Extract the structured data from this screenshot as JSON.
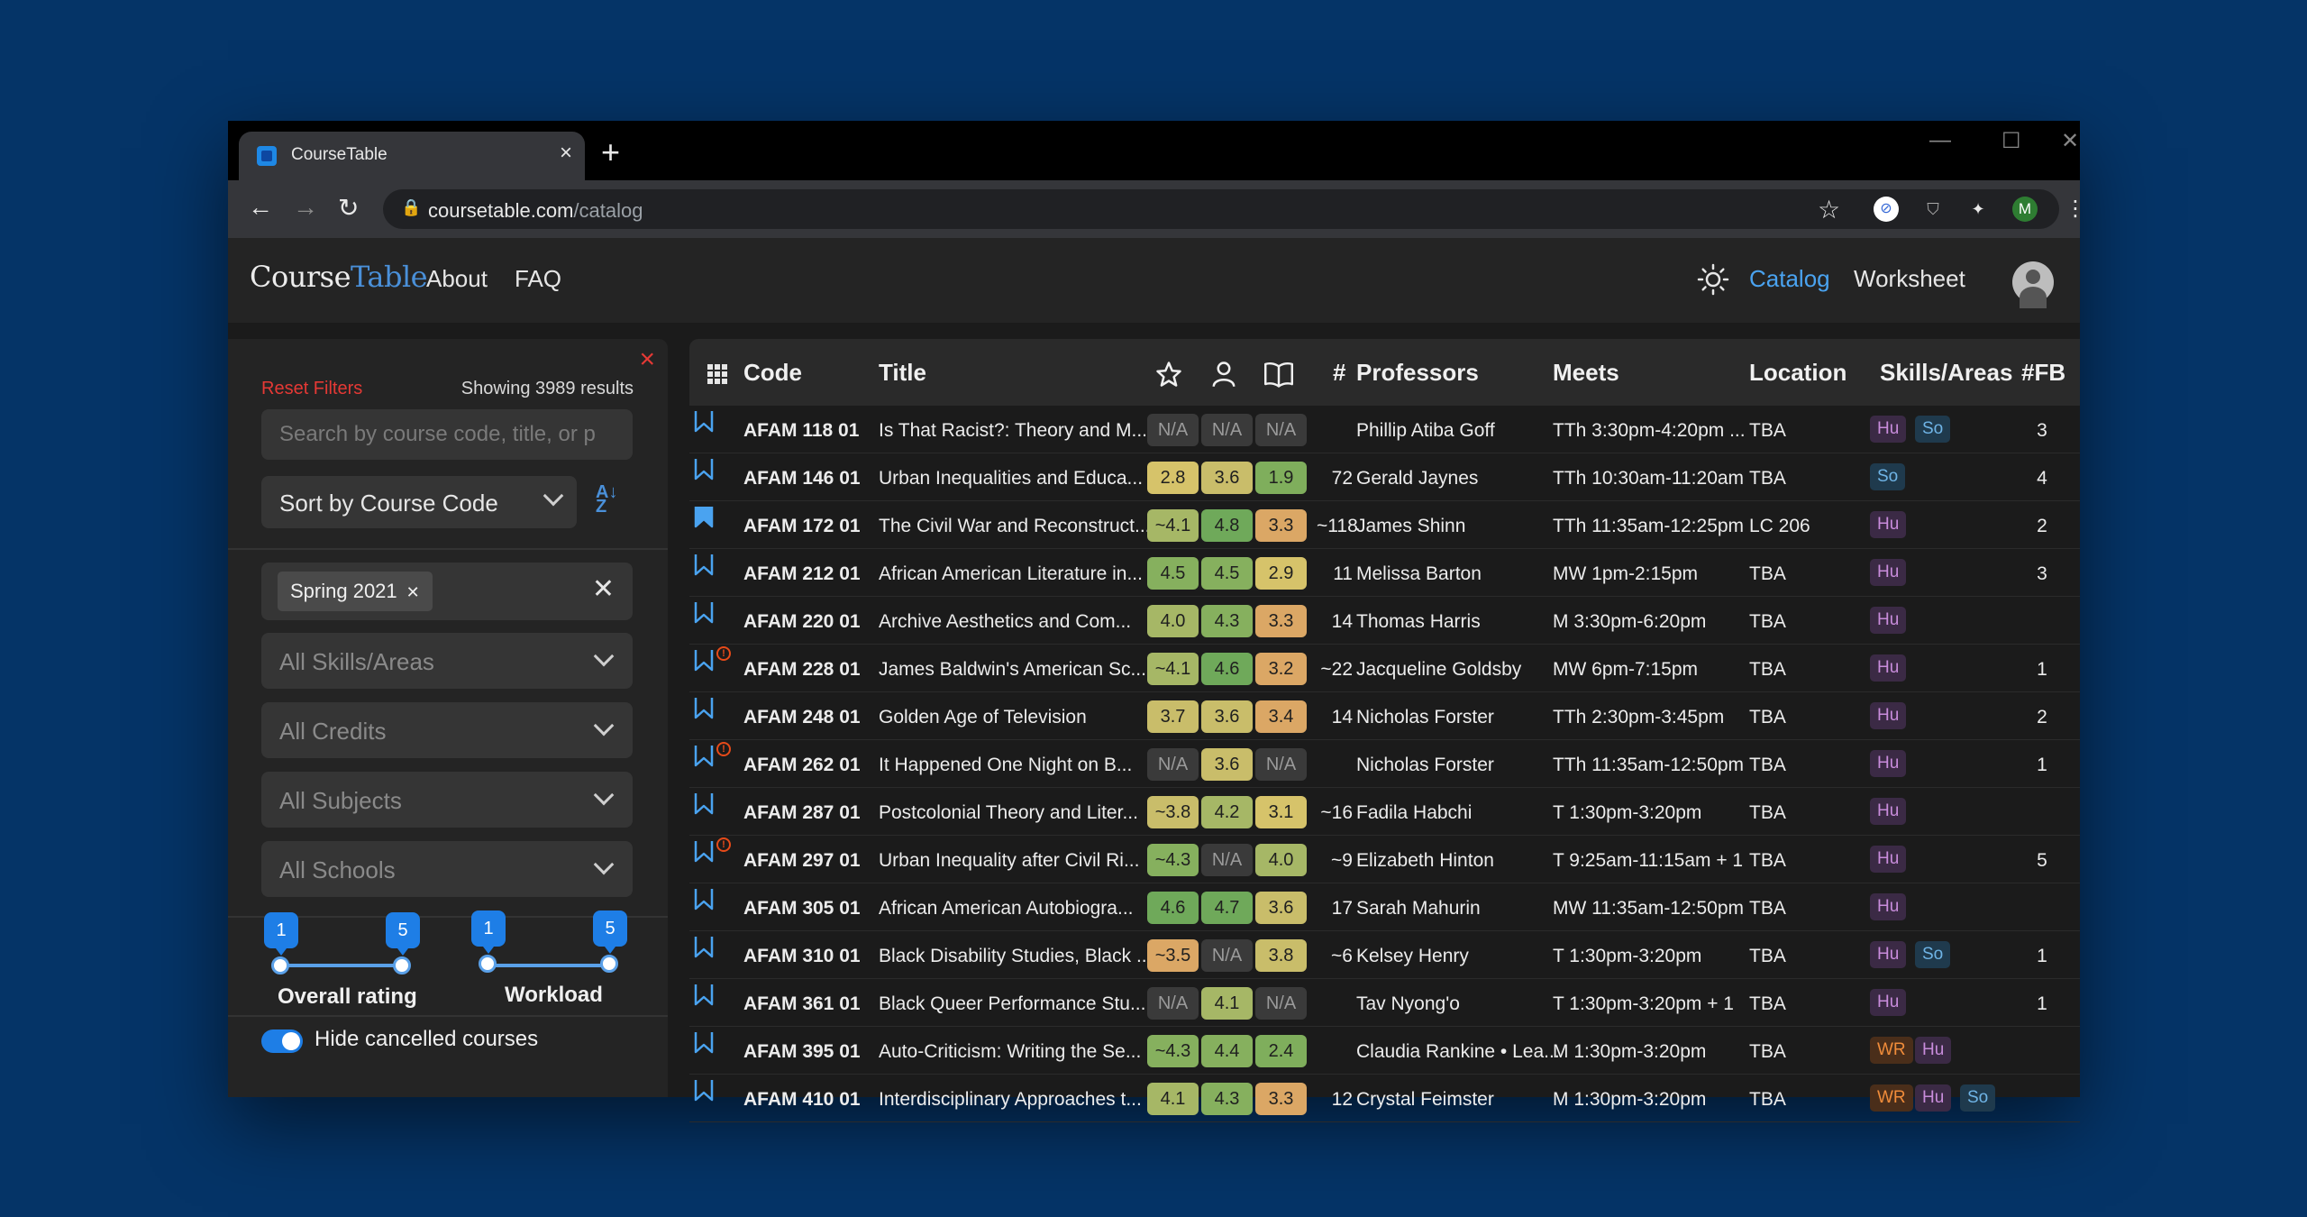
{
  "browser": {
    "tab_title": "CourseTable",
    "url_host": "coursetable.com",
    "url_path": "/catalog",
    "profile_initial": "M"
  },
  "nav": {
    "logo_a": "Course",
    "logo_b": "Table",
    "about": "About",
    "faq": "FAQ",
    "catalog": "Catalog",
    "worksheet": "Worksheet"
  },
  "sidebar": {
    "reset": "Reset Filters",
    "showing": "Showing 3989 results",
    "search_placeholder": "Search by course code, title, or p",
    "sort_label": "Sort by Course Code",
    "semester_chip": "Spring 2021",
    "skills": "All Skills/Areas",
    "credits": "All Credits",
    "subjects": "All Subjects",
    "schools": "All Schools",
    "rating_min": "1",
    "rating_max": "5",
    "rating_label": "Overall rating",
    "workload_min": "1",
    "workload_max": "5",
    "workload_label": "Workload",
    "hide_cancelled": "Hide cancelled courses"
  },
  "table": {
    "headers": {
      "code": "Code",
      "title": "Title",
      "num": "#",
      "professors": "Professors",
      "meets": "Meets",
      "location": "Location",
      "skills": "Skills/Areas",
      "fb": "#FB"
    },
    "rows": [
      {
        "code": "AFAM 118 01",
        "title": "Is That Racist?: Theory and M...",
        "r1": "N/A",
        "r2": "N/A",
        "r3": "N/A",
        "num": "",
        "prof": "Phillip Atiba Goff",
        "meets": "TTh 3:30pm-4:20pm ...",
        "loc": "TBA",
        "tags": [
          "Hu",
          "So"
        ],
        "fb": "3",
        "filled": false,
        "warn": false
      },
      {
        "code": "AFAM 146 01",
        "title": "Urban Inequalities and Educa...",
        "r1": "2.8",
        "r2": "3.6",
        "r3": "1.9",
        "num": "72",
        "prof": "Gerald Jaynes",
        "meets": "TTh 10:30am-11:20am",
        "loc": "TBA",
        "tags": [
          "So"
        ],
        "fb": "4",
        "filled": false,
        "warn": false
      },
      {
        "code": "AFAM 172 01",
        "title": "The Civil War and Reconstruct...",
        "r1": "~4.1",
        "r2": "4.8",
        "r3": "3.3",
        "num": "~118",
        "prof": "James Shinn",
        "meets": "TTh 11:35am-12:25pm",
        "loc": "LC 206",
        "tags": [
          "Hu"
        ],
        "fb": "2",
        "filled": true,
        "warn": false
      },
      {
        "code": "AFAM 212 01",
        "title": "African American Literature in...",
        "r1": "4.5",
        "r2": "4.5",
        "r3": "2.9",
        "num": "11",
        "prof": "Melissa Barton",
        "meets": "MW 1pm-2:15pm",
        "loc": "TBA",
        "tags": [
          "Hu"
        ],
        "fb": "3",
        "filled": false,
        "warn": false
      },
      {
        "code": "AFAM 220 01",
        "title": "Archive Aesthetics and Com...",
        "r1": "4.0",
        "r2": "4.3",
        "r3": "3.3",
        "num": "14",
        "prof": "Thomas Harris",
        "meets": "M 3:30pm-6:20pm",
        "loc": "TBA",
        "tags": [
          "Hu"
        ],
        "fb": "",
        "filled": false,
        "warn": false
      },
      {
        "code": "AFAM 228 01",
        "title": "James Baldwin's American Sc...",
        "r1": "~4.1",
        "r2": "4.6",
        "r3": "3.2",
        "num": "~22",
        "prof": "Jacqueline Goldsby",
        "meets": "MW 6pm-7:15pm",
        "loc": "TBA",
        "tags": [
          "Hu"
        ],
        "fb": "1",
        "filled": false,
        "warn": true
      },
      {
        "code": "AFAM 248 01",
        "title": "Golden Age of Television",
        "r1": "3.7",
        "r2": "3.6",
        "r3": "3.4",
        "num": "14",
        "prof": "Nicholas Forster",
        "meets": "TTh 2:30pm-3:45pm",
        "loc": "TBA",
        "tags": [
          "Hu"
        ],
        "fb": "2",
        "filled": false,
        "warn": false
      },
      {
        "code": "AFAM 262 01",
        "title": "It Happened One Night on B...",
        "r1": "N/A",
        "r2": "3.6",
        "r3": "N/A",
        "num": "",
        "prof": "Nicholas Forster",
        "meets": "TTh 11:35am-12:50pm",
        "loc": "TBA",
        "tags": [
          "Hu"
        ],
        "fb": "1",
        "filled": false,
        "warn": true
      },
      {
        "code": "AFAM 287 01",
        "title": "Postcolonial Theory and Liter...",
        "r1": "~3.8",
        "r2": "4.2",
        "r3": "3.1",
        "num": "~16",
        "prof": "Fadila Habchi",
        "meets": "T 1:30pm-3:20pm",
        "loc": "TBA",
        "tags": [
          "Hu"
        ],
        "fb": "",
        "filled": false,
        "warn": false
      },
      {
        "code": "AFAM 297 01",
        "title": "Urban Inequality after Civil Ri...",
        "r1": "~4.3",
        "r2": "N/A",
        "r3": "4.0",
        "num": "~9",
        "prof": "Elizabeth Hinton",
        "meets": "T 9:25am-11:15am + 1",
        "loc": "TBA",
        "tags": [
          "Hu"
        ],
        "fb": "5",
        "filled": false,
        "warn": true
      },
      {
        "code": "AFAM 305 01",
        "title": "African American Autobiogra...",
        "r1": "4.6",
        "r2": "4.7",
        "r3": "3.6",
        "num": "17",
        "prof": "Sarah Mahurin",
        "meets": "MW 11:35am-12:50pm",
        "loc": "TBA",
        "tags": [
          "Hu"
        ],
        "fb": "",
        "filled": false,
        "warn": false
      },
      {
        "code": "AFAM 310 01",
        "title": "Black Disability Studies, Black ...",
        "r1": "~3.5",
        "r2": "N/A",
        "r3": "3.8",
        "num": "~6",
        "prof": "Kelsey Henry",
        "meets": "T 1:30pm-3:20pm",
        "loc": "TBA",
        "tags": [
          "Hu",
          "So"
        ],
        "fb": "1",
        "filled": false,
        "warn": false
      },
      {
        "code": "AFAM 361 01",
        "title": "Black Queer Performance Stu...",
        "r1": "N/A",
        "r2": "4.1",
        "r3": "N/A",
        "num": "",
        "prof": "Tav Nyong'o",
        "meets": "T 1:30pm-3:20pm + 1",
        "loc": "TBA",
        "tags": [
          "Hu"
        ],
        "fb": "1",
        "filled": false,
        "warn": false
      },
      {
        "code": "AFAM 395 01",
        "title": "Auto-Criticism: Writing the Se...",
        "r1": "~4.3",
        "r2": "4.4",
        "r3": "2.4",
        "num": "",
        "prof": "Claudia Rankine • Lea...",
        "meets": "M 1:30pm-3:20pm",
        "loc": "TBA",
        "tags": [
          "WR",
          "Hu"
        ],
        "fb": "",
        "filled": false,
        "warn": false
      },
      {
        "code": "AFAM 410 01",
        "title": "Interdisciplinary Approaches t...",
        "r1": "4.1",
        "r2": "4.3",
        "r3": "3.3",
        "num": "12",
        "prof": "Crystal Feimster",
        "meets": "M 1:30pm-3:20pm",
        "loc": "TBA",
        "tags": [
          "WR",
          "Hu",
          "So"
        ],
        "fb": "",
        "filled": false,
        "warn": false
      }
    ]
  },
  "colors": {
    "accent": "#4aa3f0",
    "danger": "#e53935",
    "rating_na": "#3a3a3a"
  }
}
